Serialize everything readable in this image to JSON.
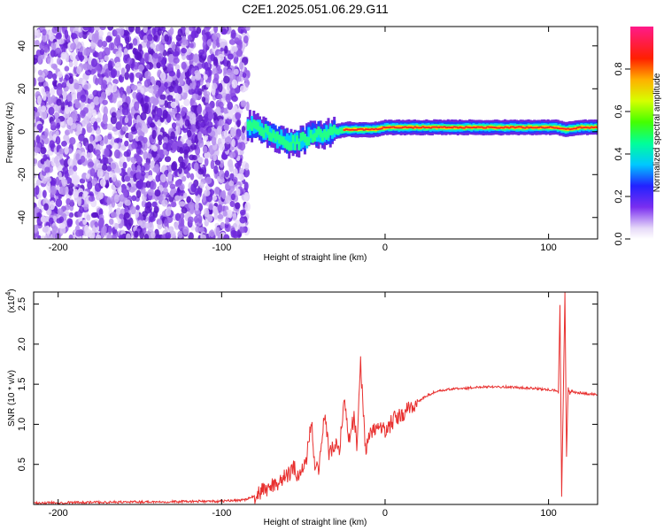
{
  "title": "C2E1.2025.051.06.29.G11",
  "chart_data": [
    {
      "type": "heatmap",
      "xlabel": "Height of straight line (km)",
      "ylabel": "Frequency (Hz)",
      "xlim": [
        -215,
        130
      ],
      "ylim": [
        -50,
        49
      ],
      "xticks": [
        -200,
        -100,
        0,
        100
      ],
      "yticks": [
        -40,
        -20,
        0,
        20,
        40
      ],
      "ridge": {
        "description_free": true,
        "x": [
          -84,
          -78,
          -72,
          -66,
          -60,
          -54,
          -48,
          -42,
          -36,
          -30,
          -24,
          -18,
          -12,
          -6,
          0,
          10,
          20,
          40,
          60,
          80,
          95,
          105,
          110,
          120,
          130
        ],
        "frequency": [
          3,
          2,
          0,
          -3,
          -5,
          -5,
          -3,
          -1,
          -1,
          0,
          1,
          1,
          1,
          1,
          2,
          2,
          2,
          2,
          2,
          2,
          2,
          2,
          1,
          2,
          2
        ]
      },
      "colorbar": {
        "label": "Normalized spectral amplitude",
        "ticks": [
          0.0,
          0.2,
          0.4,
          0.6,
          0.8
        ],
        "range": [
          0,
          1
        ]
      }
    },
    {
      "type": "line",
      "xlabel": "Height of straight line (km)",
      "ylabel": "SNR (10 * v/v)",
      "multiplier": "(x10",
      "multiplier_exp": "4",
      "multiplier_close": ")",
      "xlim": [
        -215,
        130
      ],
      "ylim": [
        0,
        2.65
      ],
      "xticks": [
        -200,
        -100,
        0,
        100
      ],
      "yticks": [
        0.5,
        1.0,
        1.5,
        2.0,
        2.5
      ],
      "color": "#e8302f",
      "series": [
        {
          "x": [
            -215,
            -190,
            -160,
            -130,
            -100,
            -85,
            -78,
            -72,
            -68,
            -64,
            -60,
            -56,
            -52,
            -48,
            -45,
            -43,
            -40,
            -37,
            -34,
            -31,
            -28,
            -25,
            -22,
            -19,
            -17,
            -15,
            -12,
            -8,
            -4,
            0,
            5,
            10,
            15,
            20,
            25,
            30,
            40,
            50,
            60,
            70,
            80,
            90,
            100,
            104,
            106,
            107,
            108,
            109,
            110,
            111,
            112,
            113,
            114,
            116,
            120,
            130
          ],
          "y": [
            0.02,
            0.025,
            0.03,
            0.035,
            0.04,
            0.06,
            0.12,
            0.2,
            0.25,
            0.3,
            0.35,
            0.45,
            0.35,
            0.6,
            1.05,
            0.4,
            0.5,
            1.15,
            0.6,
            0.75,
            0.7,
            1.3,
            0.8,
            1.1,
            0.7,
            1.8,
            0.7,
            0.9,
            1.0,
            0.9,
            1.05,
            1.1,
            1.2,
            1.28,
            1.35,
            1.4,
            1.44,
            1.45,
            1.47,
            1.47,
            1.46,
            1.45,
            1.43,
            1.42,
            1.4,
            2.48,
            0.1,
            1.3,
            2.65,
            0.6,
            1.45,
            1.38,
            1.42,
            1.4,
            1.39,
            1.37
          ]
        }
      ]
    }
  ]
}
